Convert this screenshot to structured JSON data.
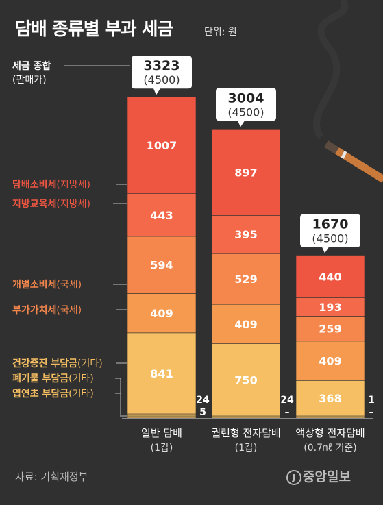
{
  "title": "담배 종류별 부과 세금",
  "unit": "단위: 원",
  "source": "자료: 기획재정부",
  "logo": "중앙일보",
  "logo_mark": "J",
  "colors": {
    "background": "#303030",
    "local_consumption_tax": "#ef5642",
    "local_education_tax": "#f46949",
    "individual_consumption_tax": "#f5874d",
    "vat": "#f69a50",
    "charges": "#f6bf63"
  },
  "chart_data": {
    "type": "bar",
    "stacked": true,
    "categories": [
      {
        "name": "일반 담배",
        "sub": "(1갑)"
      },
      {
        "name": "궐련형 전자담배",
        "sub": "(1갑)"
      },
      {
        "name": "액상형 전자담배",
        "sub": "(0.7㎖ 기준)"
      }
    ],
    "totals": [
      "3323",
      "3004",
      "1670"
    ],
    "prices": [
      "(4500)",
      "(4500)",
      "(4500)"
    ],
    "series": [
      {
        "name": "담배소비세",
        "tag": "(지방세)",
        "color": "#ef5642",
        "values": [
          1007,
          897,
          440
        ]
      },
      {
        "name": "지방교육세",
        "tag": "(지방세)",
        "color": "#f46949",
        "values": [
          443,
          395,
          193
        ]
      },
      {
        "name": "개별소비세",
        "tag": "(국세)",
        "color": "#f5874d",
        "values": [
          594,
          529,
          259
        ]
      },
      {
        "name": "부가가치세",
        "tag": "(국세)",
        "color": "#f69a50",
        "values": [
          409,
          409,
          409
        ]
      },
      {
        "name": "건강증진 부담금",
        "tag": "(기타)",
        "color": "#f6bf63",
        "values": [
          841,
          750,
          368
        ]
      },
      {
        "name": "폐기물 부담금",
        "tag": "(기타)",
        "color": "#f6bf63",
        "values": [
          24,
          24,
          1
        ]
      },
      {
        "name": "엽연초 부담금",
        "tag": "(기타)",
        "color": "#f6bf63",
        "values": [
          5,
          0,
          0
        ]
      }
    ],
    "small_value_labels": [
      [
        "24",
        "5"
      ],
      [
        "24",
        "–"
      ],
      [
        "1",
        "–"
      ]
    ],
    "legend_top_label": "세금 종합",
    "legend_top_sub": "(판매가)"
  }
}
